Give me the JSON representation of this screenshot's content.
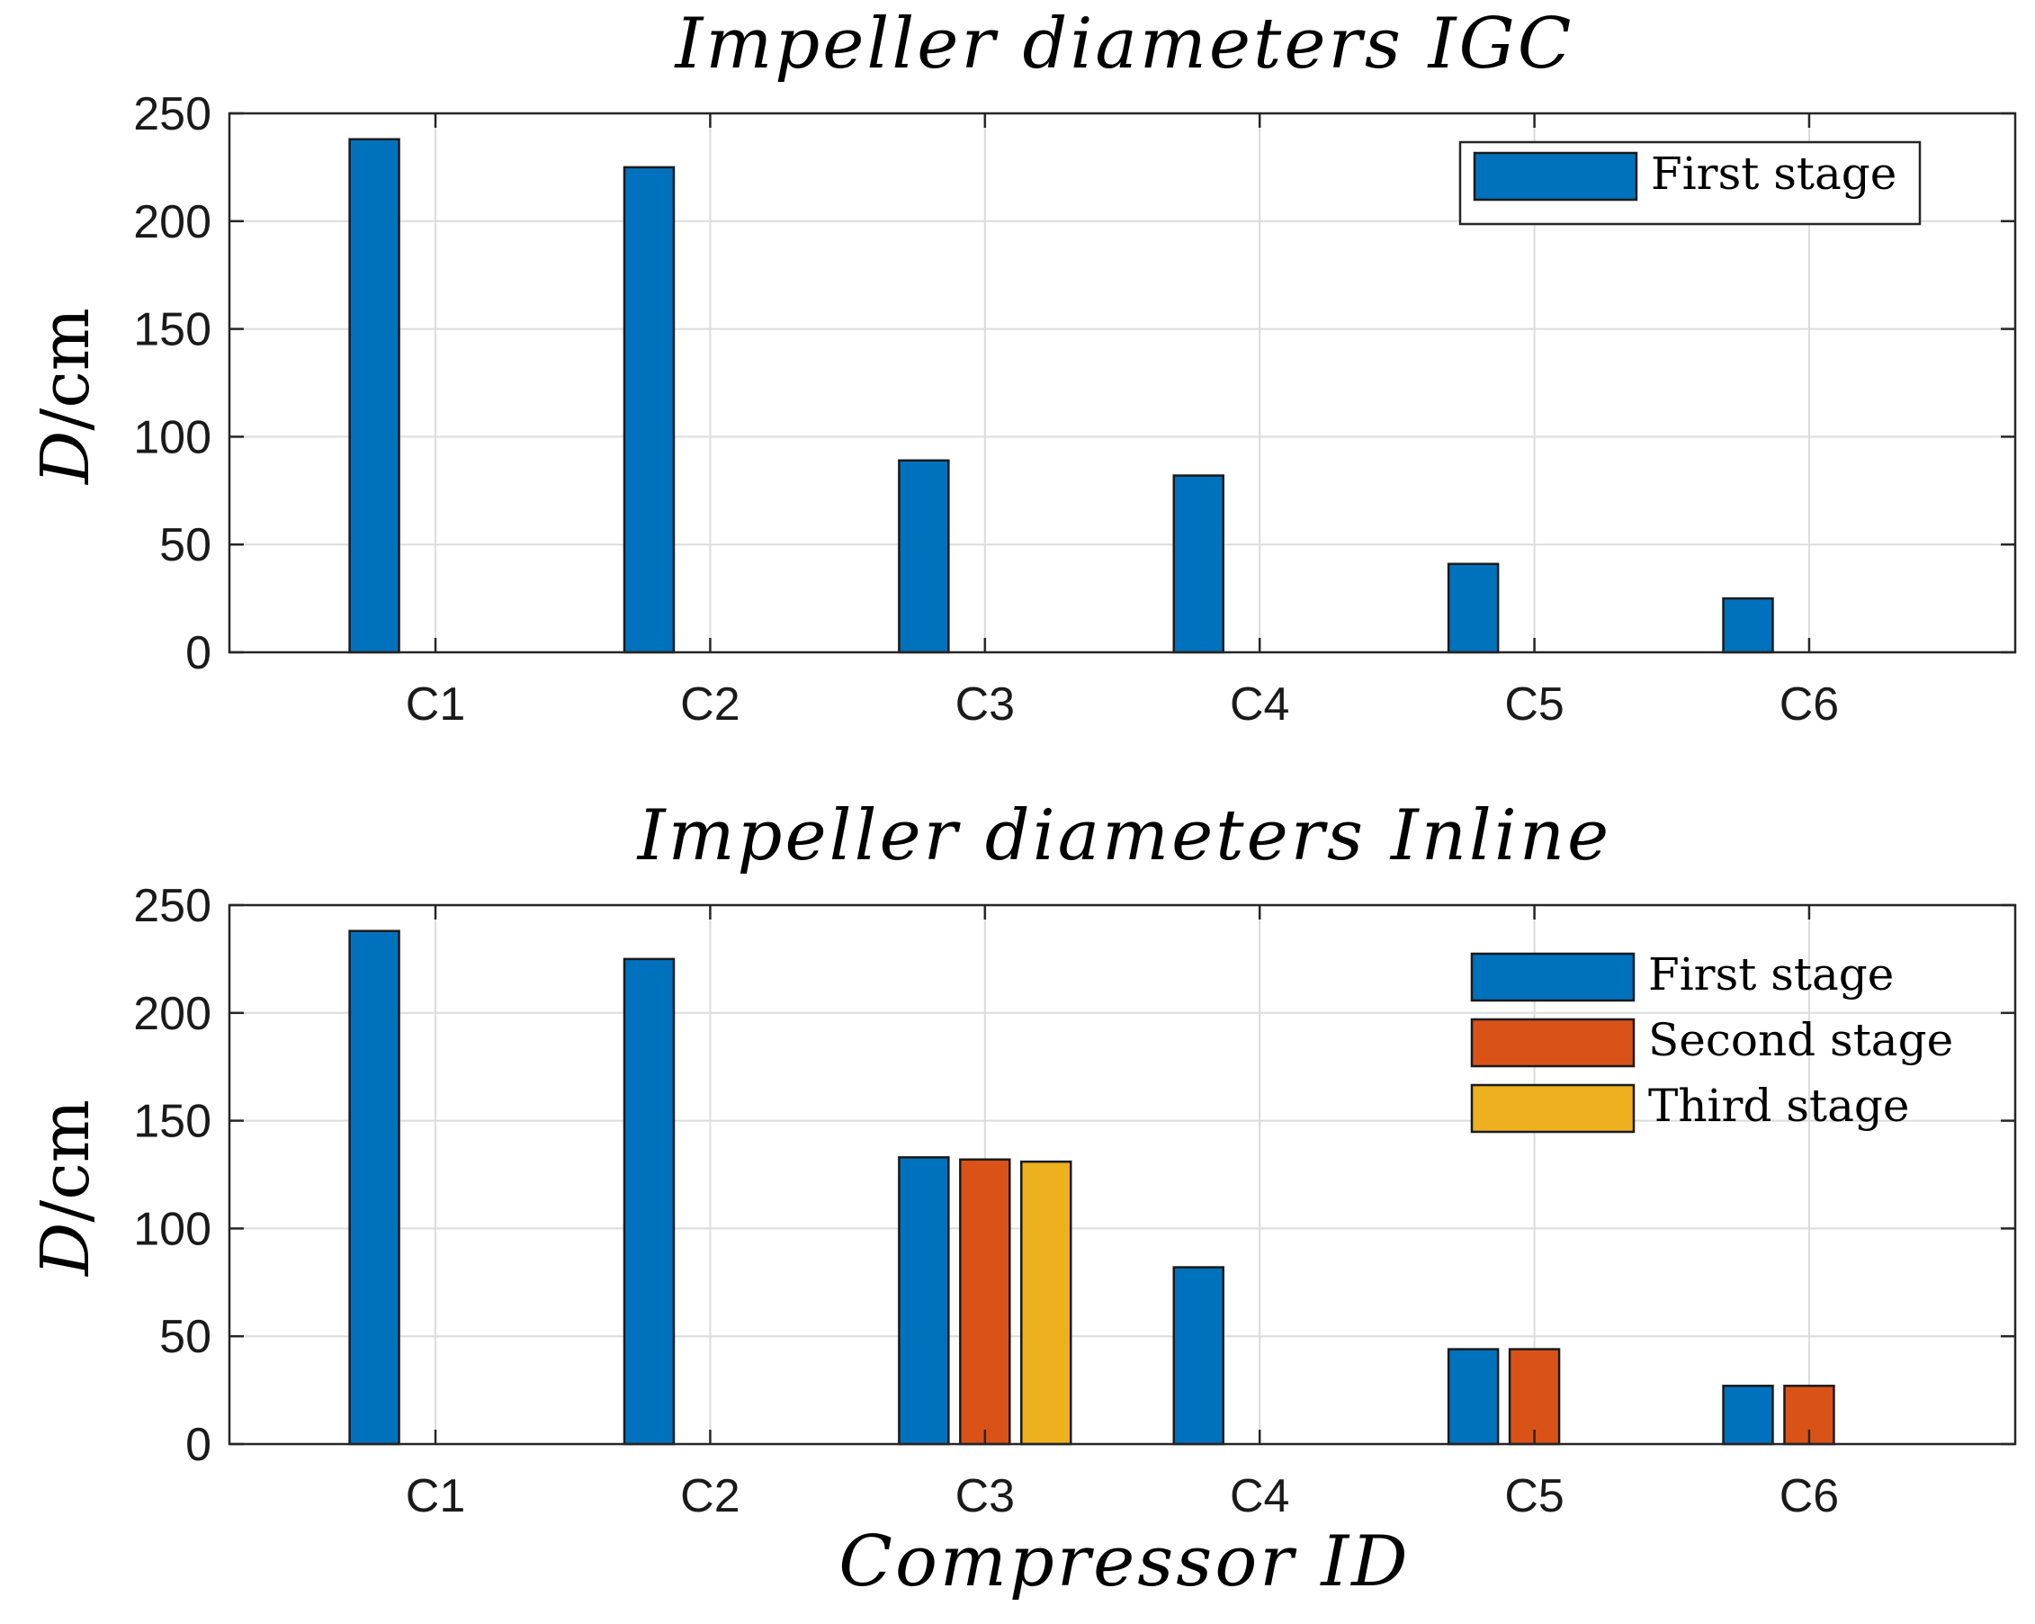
{
  "chart_data": [
    {
      "type": "bar",
      "title": "Impeller diameters IGC",
      "xlabel": "",
      "ylabel_italic": "D",
      "ylabel_unit": "/cm",
      "categories": [
        "C1",
        "C2",
        "C3",
        "C4",
        "C5",
        "C6"
      ],
      "ylim": [
        0,
        250
      ],
      "yticks": [
        0,
        50,
        100,
        150,
        200,
        250
      ],
      "grid": true,
      "legend_position": "top-right",
      "series": [
        {
          "name": "First stage",
          "color": "#0072BD",
          "values": [
            238,
            225,
            89,
            82,
            41,
            25
          ]
        },
        {
          "name": "Second stage",
          "color": "#D95319",
          "values": [
            0,
            0,
            0,
            0,
            0,
            0
          ]
        },
        {
          "name": "Third stage",
          "color": "#EDB120",
          "values": [
            0,
            0,
            0,
            0,
            0,
            0
          ]
        }
      ],
      "legend_entries": [
        "First stage"
      ]
    },
    {
      "type": "bar",
      "title": "Impeller diameters Inline",
      "xlabel": "Compressor ID",
      "ylabel_italic": "D",
      "ylabel_unit": "/cm",
      "categories": [
        "C1",
        "C2",
        "C3",
        "C4",
        "C5",
        "C6"
      ],
      "ylim": [
        0,
        250
      ],
      "yticks": [
        0,
        50,
        100,
        150,
        200,
        250
      ],
      "grid": true,
      "legend_position": "top-right",
      "series": [
        {
          "name": "First stage",
          "color": "#0072BD",
          "values": [
            238,
            225,
            133,
            82,
            44,
            27
          ]
        },
        {
          "name": "Second stage",
          "color": "#D95319",
          "values": [
            0,
            0,
            132,
            0,
            44,
            27
          ]
        },
        {
          "name": "Third stage",
          "color": "#EDB120",
          "values": [
            0,
            0,
            131,
            0,
            0,
            0
          ]
        }
      ],
      "legend_entries": [
        "First stage",
        "Second stage",
        "Third stage"
      ]
    }
  ]
}
